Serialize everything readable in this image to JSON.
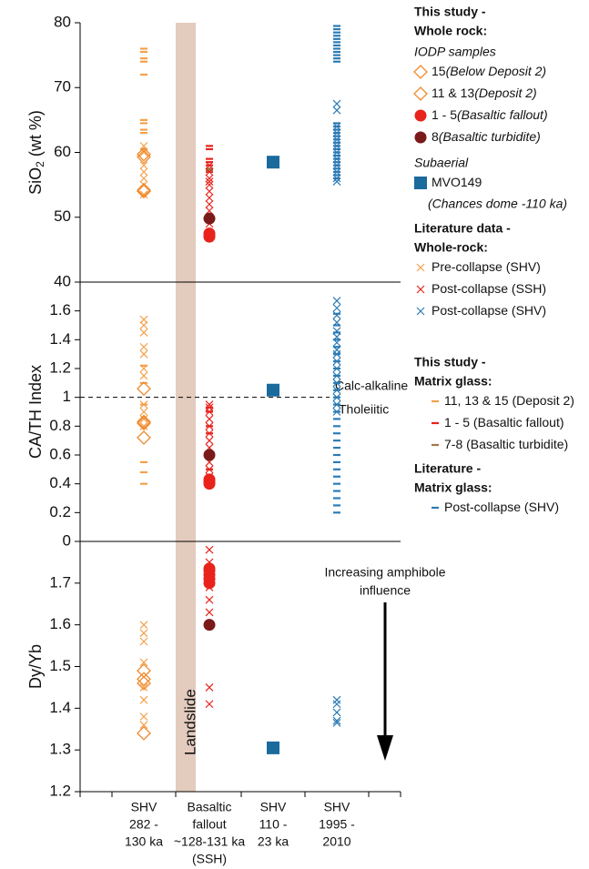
{
  "chart_data": {
    "type": "scatter",
    "categories": [
      [
        "SHV",
        "282 -",
        "130 ka"
      ],
      [
        "Basaltic",
        "fallout",
        "~128-131 ka",
        "(SSH)"
      ],
      [
        "SHV",
        "110 -",
        "23 ka"
      ],
      [
        "SHV",
        "1995 -",
        "2010"
      ]
    ],
    "band_label": "Landslide",
    "panels": [
      {
        "ylabel": [
          "SiO",
          "2",
          " (wt %)"
        ],
        "ylim": [
          40,
          80
        ],
        "yticks": [
          40,
          50,
          60,
          70,
          80
        ]
      },
      {
        "ylabel": "CA/TH Index",
        "ylim": [
          0,
          1.8
        ],
        "yticks": [
          0,
          0.2,
          0.4,
          0.6,
          0.8,
          1,
          1.2,
          1.4,
          1.6
        ],
        "refline": {
          "value": 1,
          "above": "Calc-alkaline",
          "below": "Tholeiitic"
        }
      },
      {
        "ylabel": "Dy/Yb",
        "ylim": [
          1.2,
          1.8
        ],
        "yticks": [
          1.2,
          1.3,
          1.4,
          1.5,
          1.6,
          1.7
        ],
        "annotation": [
          "Increasing amphibole",
          "influence"
        ]
      }
    ],
    "groups": [
      {
        "heading": [
          "This study -",
          "Whole rock:"
        ],
        "subheading": "IODP samples",
        "series": [
          {
            "name": "15",
            "note": "(Below Deposit 2)",
            "marker": "diamond",
            "color": "#f08a2c",
            "category": 0,
            "values": [
              [
                59.7,
                54.0
              ],
              [
                1.06,
                0.72
              ],
              [
                1.49,
                1.34
              ]
            ]
          },
          {
            "name": "11 & 13",
            "note": "(Deposit 2)",
            "marker": "diamond",
            "color": "#f08a2c",
            "category": 0,
            "values": [
              [
                59.3,
                54.2
              ],
              [
                0.83,
                0.82
              ],
              [
                1.47,
                1.46
              ]
            ]
          },
          {
            "name": "1 - 5",
            "note": "(Basaltic fallout)",
            "marker": "circle",
            "color": "#e8231c",
            "category": 1,
            "values": [
              [
                47.5,
                47.2,
                47.0,
                47.3
              ],
              [
                0.43,
                0.41,
                0.42,
                0.4
              ],
              [
                1.735,
                1.73,
                1.72,
                1.71,
                1.7
              ]
            ]
          },
          {
            "name": "8",
            "note": "(Basaltic turbidite)",
            "marker": "circle",
            "color": "#7b1a1a",
            "category": 1,
            "values": [
              [
                49.8
              ],
              [
                0.6
              ],
              [
                1.6
              ]
            ]
          }
        ]
      },
      {
        "subheading": "Subaerial",
        "series": [
          {
            "name": "MVO149",
            "note": "(Chances dome -110 ka)",
            "marker": "square",
            "color": "#1b6a9c",
            "category": 2,
            "values": [
              [
                58.5
              ],
              [
                1.05
              ],
              [
                1.305
              ]
            ]
          }
        ]
      },
      {
        "heading": [
          "Literature data -",
          "Whole-rock:"
        ],
        "series": [
          {
            "name": "Pre-collapse (SHV)",
            "marker": "x",
            "color": "#f5a04a",
            "category": 0,
            "values": [
              [
                61,
                60,
                58,
                57,
                56,
                55,
                53.5
              ],
              [
                1.54,
                1.5,
                1.45,
                1.35,
                1.3,
                1.2,
                1.15,
                0.95,
                0.9,
                0.85,
                0.8
              ],
              [
                1.6,
                1.58,
                1.56,
                1.51,
                1.45,
                1.42,
                1.38,
                1.36
              ]
            ]
          },
          {
            "name": "Post-collapse (SSH)",
            "marker": "x",
            "color": "#e8231c",
            "category": 1,
            "values": [
              [
                58,
                57,
                56,
                55.5,
                55,
                54,
                53,
                52,
                51,
                50,
                49
              ],
              [
                0.95,
                0.93,
                0.9,
                0.85,
                0.8,
                0.75,
                0.7,
                0.65,
                0.6,
                0.55,
                0.5,
                0.45
              ],
              [
                1.78,
                1.75,
                1.72,
                1.69,
                1.66,
                1.63,
                1.45,
                1.41
              ]
            ]
          },
          {
            "name": "Post-collapse (SHV)",
            "marker": "x",
            "color": "#2b7bb5",
            "category": 3,
            "values": [
              [
                67.5,
                66.5,
                64,
                63,
                62,
                61,
                60,
                59,
                58,
                57,
                56,
                55.5
              ],
              [
                1.67,
                1.62,
                1.57,
                1.52,
                1.46,
                1.42,
                1.38,
                1.33,
                1.3,
                1.25,
                1.2,
                1.15,
                1.1,
                1.05,
                1.0,
                0.95,
                0.9
              ],
              [
                1.42,
                1.41,
                1.39,
                1.37,
                1.365
              ]
            ]
          }
        ]
      },
      {
        "heading": [
          "This study -",
          "Matrix glass:"
        ],
        "series": [
          {
            "name": "11, 13 & 15 (Deposit 2)",
            "marker": "dash",
            "color": "#f5a04a",
            "category": 0,
            "values": [
              [
                76,
                75.5,
                74.5,
                74,
                72,
                65,
                64.5,
                63.5,
                63,
                60.5
              ],
              [
                1.22,
                1.1,
                0.95,
                0.55,
                0.48,
                0.4
              ],
              []
            ]
          },
          {
            "name": "1 - 5 (Basaltic fallout)",
            "marker": "dash",
            "color": "#e8231c",
            "category": 1,
            "values": [
              [
                61,
                60.5,
                59,
                58.5,
                58,
                57.5,
                57
              ],
              [
                0.93,
                0.9,
                0.8,
                0.75,
                0.6,
                0.5,
                0.45,
                0.42
              ],
              []
            ]
          },
          {
            "name": "7-8 (Basaltic turbidite)",
            "marker": "dash",
            "color": "#a0784a",
            "category": 1,
            "values": [
              [
                57.5,
                57.2
              ],
              [
                0.6,
                0.58
              ],
              []
            ]
          }
        ]
      },
      {
        "heading": [
          "Literature -",
          "Matrix glass:"
        ],
        "series": [
          {
            "name": "Post-collapse (SHV)",
            "marker": "dash",
            "color": "#2b7bb5",
            "category": 3,
            "values": [
              [
                79.5,
                79,
                78.5,
                78,
                77.5,
                77,
                76.5,
                76,
                75.5,
                75,
                74.5,
                74,
                64.5,
                64,
                63.5,
                63,
                62.5,
                62,
                61.5,
                61,
                60.5,
                60,
                59.5,
                59,
                58.5,
                58,
                57.5,
                57,
                56.5,
                56
              ],
              [
                1.58,
                1.5,
                1.45,
                1.4,
                1.35,
                1.3,
                1.25,
                1.2,
                1.15,
                1.1,
                1.05,
                1.0,
                0.95,
                0.9,
                0.85,
                0.8,
                0.75,
                0.7,
                0.65,
                0.6,
                0.55,
                0.5,
                0.45,
                0.4,
                0.35,
                0.3,
                0.25,
                0.2
              ],
              []
            ]
          }
        ]
      }
    ]
  }
}
